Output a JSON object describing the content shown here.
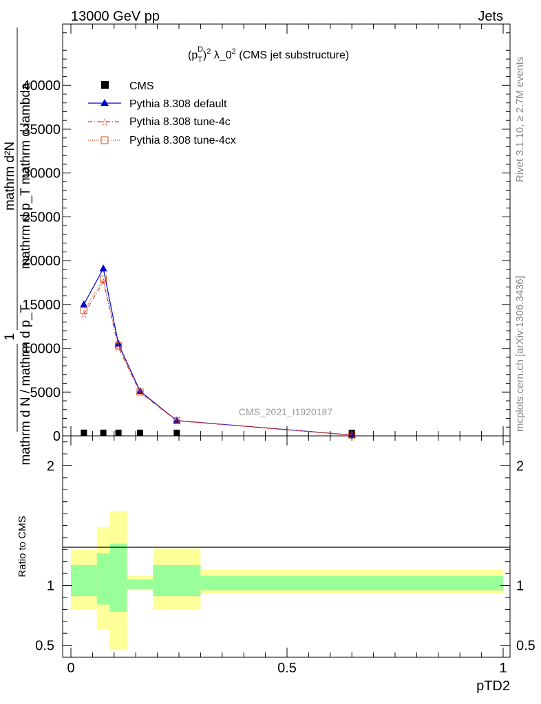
{
  "header": {
    "left": "13000 GeV pp",
    "right": "Jets"
  },
  "side": {
    "rivet": "Rivet 3.1.10, ≥ 2.7M events",
    "mcplots": "mcplots.cern.ch [arXiv:1306.3436]"
  },
  "chart_data": {
    "type": "line",
    "title_parts": {
      "p": "(p",
      "sub": "T",
      "sup_d": "D",
      "sup_2": "2",
      "rest": " λ_0",
      "rest_sup": "2",
      "tail": " (CMS jet substructure)"
    },
    "watermark": "CMS_2021_I1920187",
    "ylabel": {
      "numerator": "mathrm d²N",
      "denominator": "mathrm d p_T mathrm d lambda",
      "prefactor_num": "1",
      "prefactor_den": "mathrm d N / mathrm d p_T"
    },
    "xlabel": "pTD2",
    "xlim": [
      0,
      1
    ],
    "ylim": [
      0,
      47000
    ],
    "xticks": [
      {
        "v": 0,
        "label": "0"
      },
      {
        "v": 0.5,
        "label": "0.5"
      },
      {
        "v": 1,
        "label": "1"
      }
    ],
    "yticks": [
      {
        "v": 0,
        "label": "0"
      },
      {
        "v": 5000,
        "label": "5000"
      },
      {
        "v": 10000,
        "label": "10000"
      },
      {
        "v": 15000,
        "label": "15000"
      },
      {
        "v": 20000,
        "label": "20000"
      },
      {
        "v": 25000,
        "label": "25000"
      },
      {
        "v": 30000,
        "label": "30000"
      },
      {
        "v": 35000,
        "label": "35000"
      },
      {
        "v": 40000,
        "label": "40000"
      }
    ],
    "legend": [
      {
        "key": "cms",
        "label": "CMS"
      },
      {
        "key": "default",
        "label": "Pythia 8.308 default"
      },
      {
        "key": "tune4c",
        "label": "Pythia 8.308 tune-4c"
      },
      {
        "key": "tune4cx",
        "label": "Pythia 8.308 tune-4cx"
      }
    ],
    "x": [
      0.03,
      0.075,
      0.11,
      0.16,
      0.245,
      0.65
    ],
    "series": [
      {
        "key": "cms",
        "name": "CMS",
        "color": "#000000",
        "marker": "square",
        "values": [
          8,
          7,
          6,
          5,
          3,
          0.2
        ]
      },
      {
        "key": "default",
        "name": "Pythia 8.308 default",
        "color": "#0000cc",
        "marker": "triangle",
        "values": [
          15000,
          19100,
          10500,
          5100,
          1750,
          100
        ]
      },
      {
        "key": "tune4c",
        "name": "Pythia 8.308 tune-4c",
        "color": "#e83030",
        "marker": "star",
        "values": [
          13900,
          17600,
          10100,
          4950,
          1720,
          95
        ]
      },
      {
        "key": "tune4cx",
        "name": "Pythia 8.308 tune-4cx",
        "color": "#d05018",
        "marker": "opensquare",
        "values": [
          14300,
          17900,
          10300,
          5000,
          1740,
          98
        ]
      }
    ],
    "ratio": {
      "ylabel": "Ratio to CMS",
      "ylim": [
        0.4,
        2.25
      ],
      "yticks": [
        {
          "v": 0.5,
          "label": "0.5"
        },
        {
          "v": 1,
          "label": "1"
        },
        {
          "v": 2,
          "label": "2"
        }
      ],
      "bands": [
        {
          "x0": 0.0,
          "x1": 0.06,
          "y_lo": 0.8,
          "y_hi": 1.3,
          "g_lo": 0.91,
          "g_hi": 1.17
        },
        {
          "x0": 0.06,
          "x1": 0.09,
          "y_lo": 0.63,
          "y_hi": 1.49,
          "g_lo": 0.84,
          "g_hi": 1.27
        },
        {
          "x0": 0.09,
          "x1": 0.13,
          "y_lo": 0.46,
          "y_hi": 1.62,
          "g_lo": 0.78,
          "g_hi": 1.35
        },
        {
          "x0": 0.13,
          "x1": 0.19,
          "y_lo": 0.96,
          "y_hi": 1.08,
          "g_lo": 0.97,
          "g_hi": 1.05
        },
        {
          "x0": 0.19,
          "x1": 0.3,
          "y_lo": 0.8,
          "y_hi": 1.31,
          "g_lo": 0.91,
          "g_hi": 1.17
        },
        {
          "x0": 0.3,
          "x1": 1.0,
          "y_lo": 0.93,
          "y_hi": 1.13,
          "g_lo": 0.96,
          "g_hi": 1.08
        }
      ]
    }
  }
}
